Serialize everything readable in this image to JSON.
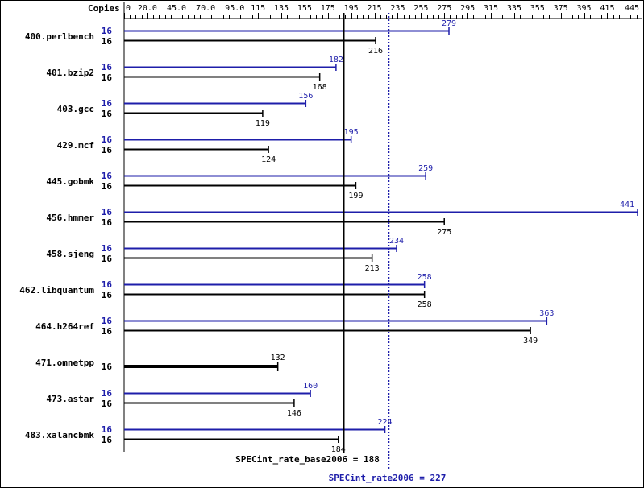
{
  "chart_data": {
    "type": "bar",
    "orientation": "horizontal",
    "copies_header": "Copies",
    "xlim": [
      0,
      441
    ],
    "tick_labels": [
      "0",
      "20.0",
      "45.0",
      "70.0",
      "95.0",
      "115",
      "135",
      "155",
      "175",
      "195",
      "215",
      "235",
      "255",
      "275",
      "295",
      "315",
      "335",
      "355",
      "375",
      "395",
      "415",
      "445"
    ],
    "tick_values": [
      0,
      20,
      45,
      70,
      95,
      115,
      135,
      155,
      175,
      195,
      215,
      235,
      255,
      275,
      295,
      315,
      335,
      355,
      375,
      395,
      415,
      445
    ],
    "benchmarks": [
      {
        "name": "400.perlbench",
        "peak_copies": "16",
        "peak": 279,
        "base_copies": "16",
        "base": 216
      },
      {
        "name": "401.bzip2",
        "peak_copies": "16",
        "peak": 182,
        "base_copies": "16",
        "base": 168
      },
      {
        "name": "403.gcc",
        "peak_copies": "16",
        "peak": 156,
        "base_copies": "16",
        "base": 119
      },
      {
        "name": "429.mcf",
        "peak_copies": "16",
        "peak": 195,
        "base_copies": "16",
        "base": 124
      },
      {
        "name": "445.gobmk",
        "peak_copies": "16",
        "peak": 259,
        "base_copies": "16",
        "base": 199
      },
      {
        "name": "456.hmmer",
        "peak_copies": "16",
        "peak": 441,
        "base_copies": "16",
        "base": 275
      },
      {
        "name": "458.sjeng",
        "peak_copies": "16",
        "peak": 234,
        "base_copies": "16",
        "base": 213
      },
      {
        "name": "462.libquantum",
        "peak_copies": "16",
        "peak": 258,
        "base_copies": "16",
        "base": 258
      },
      {
        "name": "464.h264ref",
        "peak_copies": "16",
        "peak": 363,
        "base_copies": "16",
        "base": 349
      },
      {
        "name": "471.omnetpp",
        "peak_copies": null,
        "peak": null,
        "base_copies": "16",
        "base": 132
      },
      {
        "name": "473.astar",
        "peak_copies": "16",
        "peak": 160,
        "base_copies": "16",
        "base": 146
      },
      {
        "name": "483.xalancbmk",
        "peak_copies": "16",
        "peak": 224,
        "base_copies": "16",
        "base": 184
      }
    ],
    "base_mean": {
      "label": "SPECint_rate_base2006 = 188",
      "value": 188
    },
    "peak_mean": {
      "label": "SPECint_rate2006 = 227",
      "value": 227
    },
    "colors": {
      "peak": "#1e1eaa",
      "base": "#000000"
    }
  }
}
